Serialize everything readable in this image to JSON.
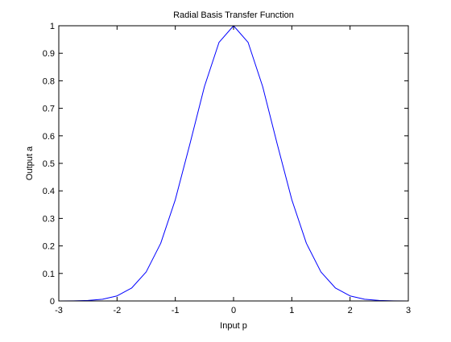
{
  "chart_data": {
    "type": "line",
    "title": "Radial Basis Transfer Function",
    "xlabel": "Input p",
    "ylabel": "Output a",
    "xlim": [
      -3,
      3
    ],
    "ylim": [
      0,
      1
    ],
    "xticks": [
      -3,
      -2,
      -1,
      0,
      1,
      2,
      3
    ],
    "yticks": [
      0,
      0.1,
      0.2,
      0.3,
      0.4,
      0.5,
      0.6,
      0.7,
      0.8,
      0.9,
      1
    ],
    "xtick_labels": [
      "-3",
      "-2",
      "-1",
      "0",
      "1",
      "2",
      "3"
    ],
    "ytick_labels": [
      "0",
      "0.1",
      "0.2",
      "0.3",
      "0.4",
      "0.5",
      "0.6",
      "0.7",
      "0.8",
      "0.9",
      "1"
    ],
    "grid": false,
    "series": [
      {
        "color": "#0000ff",
        "x": [
          -3,
          -2.75,
          -2.5,
          -2.25,
          -2,
          -1.75,
          -1.5,
          -1.25,
          -1,
          -0.75,
          -0.5,
          -0.25,
          0,
          0.25,
          0.5,
          0.75,
          1,
          1.25,
          1.5,
          1.75,
          2,
          2.25,
          2.5,
          2.75,
          3
        ],
        "y": [
          0.0001,
          0.0005,
          0.0019,
          0.0063,
          0.0183,
          0.0468,
          0.1054,
          0.2096,
          0.3679,
          0.5698,
          0.7788,
          0.9394,
          1,
          0.9394,
          0.7788,
          0.5698,
          0.3679,
          0.2096,
          0.1054,
          0.0468,
          0.0183,
          0.0063,
          0.0019,
          0.0005,
          0.0001
        ]
      }
    ]
  }
}
